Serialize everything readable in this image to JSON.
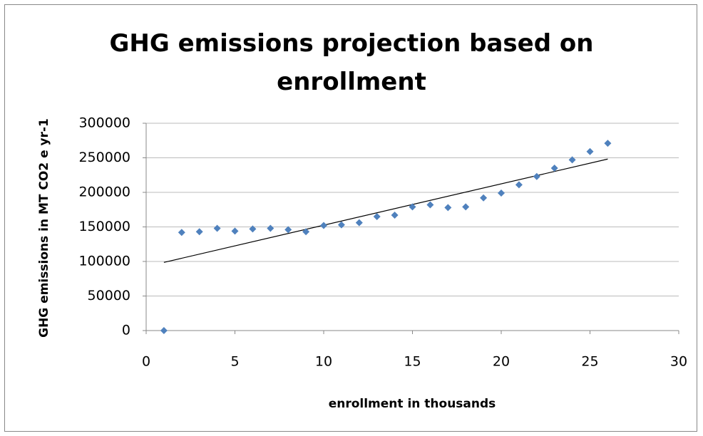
{
  "chart_data": {
    "type": "scatter",
    "title": "GHG emissions projection based on enrollment",
    "x_label": "enrollment in thousands",
    "y_label": "GHG emissions in MT CO2 e yr-1",
    "x": [
      1,
      2,
      3,
      4,
      5,
      6,
      7,
      8,
      9,
      10,
      11,
      12,
      13,
      14,
      15,
      16,
      17,
      18,
      19,
      20,
      21,
      22,
      23,
      24,
      25,
      26
    ],
    "values": [
      0,
      142000,
      143000,
      148000,
      144000,
      147000,
      148000,
      146000,
      143000,
      152000,
      153000,
      156000,
      165000,
      167000,
      179000,
      182000,
      178000,
      179000,
      192000,
      199000,
      211000,
      223000,
      235000,
      247000,
      259000,
      271000
    ],
    "color": "#4f81bd",
    "trendline": true,
    "xlim": [
      0,
      30
    ],
    "xticks": [
      0,
      5,
      10,
      15,
      20,
      25,
      30
    ],
    "ylim": [
      0,
      300000
    ],
    "yticks": [
      0,
      50000,
      100000,
      150000,
      200000,
      250000,
      300000
    ],
    "grid": true
  }
}
